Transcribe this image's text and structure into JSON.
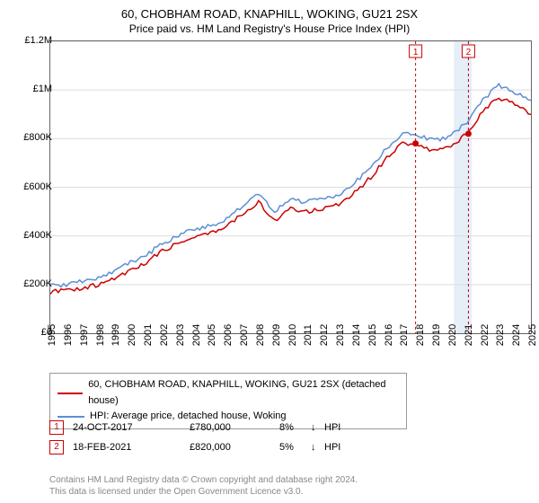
{
  "title": "60, CHOBHAM ROAD, KNAPHILL, WOKING, GU21 2SX",
  "subtitle": "Price paid vs. HM Land Registry's House Price Index (HPI)",
  "chart": {
    "type": "line",
    "background_color": "#ffffff",
    "plot_border_color": "#666666",
    "grid_color": "#dddddd",
    "ylim": [
      0,
      1200000
    ],
    "ytick_step": 200000,
    "y_ticks": [
      "£0",
      "£200K",
      "£400K",
      "£600K",
      "£800K",
      "£1M",
      "£1.2M"
    ],
    "x_ticks": [
      "1995",
      "1996",
      "1997",
      "1998",
      "1999",
      "2000",
      "2001",
      "2002",
      "2003",
      "2004",
      "2005",
      "2006",
      "2007",
      "2008",
      "2009",
      "2010",
      "2011",
      "2012",
      "2013",
      "2014",
      "2015",
      "2016",
      "2017",
      "2018",
      "2019",
      "2020",
      "2021",
      "2022",
      "2023",
      "2024",
      "2025"
    ],
    "series": [
      {
        "name": "red",
        "label": "60, CHOBHAM ROAD, KNAPHILL, WOKING, GU21 2SX (detached house)",
        "color": "#cc0000",
        "line_width": 1.5,
        "values": [
          170000,
          175000,
          185000,
          200000,
          225000,
          260000,
          290000,
          340000,
          370000,
          400000,
          410000,
          440000,
          490000,
          540000,
          460000,
          510000,
          500000,
          510000,
          530000,
          580000,
          640000,
          720000,
          780000,
          770000,
          750000,
          770000,
          820000,
          910000,
          970000,
          940000,
          900000
        ]
      },
      {
        "name": "blue",
        "label": "HPI: Average price, detached house, Woking",
        "color": "#5b8fd6",
        "line_width": 1.5,
        "values": [
          195000,
          200000,
          215000,
          230000,
          255000,
          290000,
          320000,
          370000,
          400000,
          430000,
          440000,
          470000,
          520000,
          570000,
          500000,
          550000,
          540000,
          550000,
          570000,
          620000,
          680000,
          760000,
          820000,
          810000,
          790000,
          810000,
          870000,
          960000,
          1020000,
          990000,
          950000
        ]
      }
    ],
    "markers": [
      {
        "id": "1",
        "x_index": 22.8,
        "y": 780000,
        "box_color": "#cc0000",
        "dash_color": "#cc0000"
      },
      {
        "id": "2",
        "x_index": 26.1,
        "y": 820000,
        "box_color": "#cc0000",
        "dash_color": "#cc0000"
      }
    ],
    "highlight_band": {
      "from_index": 25.2,
      "to_index": 26.3,
      "color": "#e6eef8"
    },
    "label_fontsize": 11,
    "title_fontsize": 13
  },
  "legend": {
    "rows": [
      {
        "color": "#cc0000",
        "label": "60, CHOBHAM ROAD, KNAPHILL, WOKING, GU21 2SX (detached house)"
      },
      {
        "color": "#5b8fd6",
        "label": "HPI: Average price, detached house, Woking"
      }
    ]
  },
  "data_points": [
    {
      "id": "1",
      "date": "24-OCT-2017",
      "price": "£780,000",
      "pct": "8%",
      "arrow": "↓",
      "suffix": "HPI",
      "box_color": "#cc0000"
    },
    {
      "id": "2",
      "date": "18-FEB-2021",
      "price": "£820,000",
      "pct": "5%",
      "arrow": "↓",
      "suffix": "HPI",
      "box_color": "#cc0000"
    }
  ],
  "footer_line1": "Contains HM Land Registry data © Crown copyright and database right 2024.",
  "footer_line2": "This data is licensed under the Open Government Licence v3.0."
}
